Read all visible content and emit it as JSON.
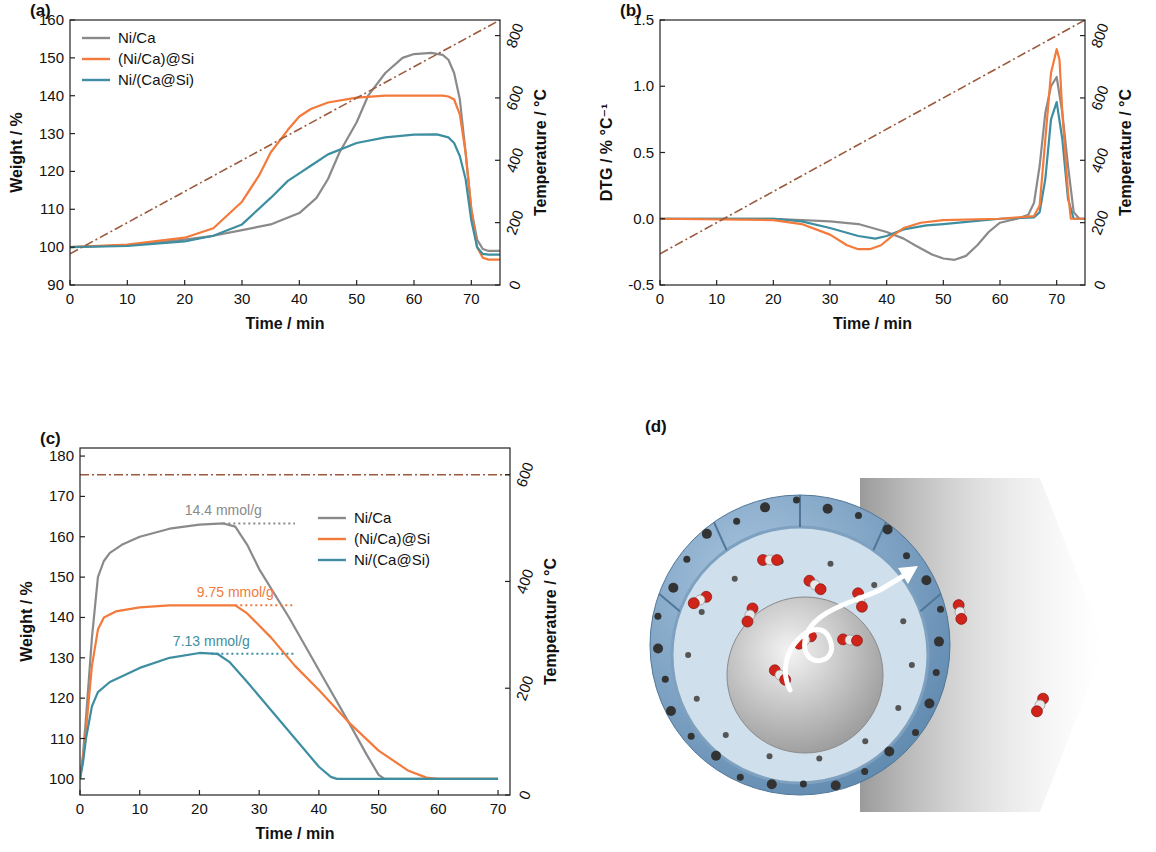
{
  "chart_data": [
    {
      "type": "line",
      "title": "(a)",
      "xlabel": "Time / min",
      "ylabel": "Weight / %",
      "y2label": "Temperature / °C",
      "xlim": [
        0,
        75
      ],
      "xticks": [
        0,
        10,
        20,
        30,
        40,
        50,
        60,
        70
      ],
      "ylim": [
        90,
        160
      ],
      "yticks": [
        90,
        100,
        110,
        120,
        130,
        140,
        150,
        160
      ],
      "y2lim": [
        0,
        850
      ],
      "y2ticks": [
        0,
        200,
        400,
        600,
        800
      ],
      "legend": "upper left",
      "grid": false,
      "series": [
        {
          "name": "Ni/Ca",
          "color": "#8a8a8a",
          "line_style": "solid",
          "x": [
            0,
            10,
            20,
            25,
            30,
            35,
            40,
            43,
            45,
            47,
            50,
            52,
            55,
            58,
            60,
            63,
            65,
            66,
            67,
            68,
            69,
            70,
            71,
            72,
            73,
            75
          ],
          "values": [
            100,
            100.5,
            102,
            103,
            104.5,
            106,
            109,
            113,
            118,
            125,
            133,
            140,
            146,
            150,
            151,
            151.3,
            150.8,
            149.5,
            146,
            139,
            125,
            110,
            102,
            99.5,
            99,
            99
          ]
        },
        {
          "name": "(Ni/Ca)@Si",
          "color": "#f37a3a",
          "line_style": "solid",
          "x": [
            0,
            10,
            20,
            25,
            30,
            33,
            35,
            38,
            40,
            42,
            45,
            50,
            55,
            60,
            65,
            66,
            67,
            68,
            69,
            70,
            71,
            72,
            73,
            75
          ],
          "values": [
            100,
            100.7,
            102.5,
            105,
            112,
            119,
            125,
            131,
            134.5,
            136.5,
            138.2,
            139.5,
            140,
            140,
            140,
            139.8,
            139,
            135,
            125,
            110,
            100,
            97.2,
            96.7,
            96.7
          ]
        },
        {
          "name": "Ni/(Ca@Si)",
          "color": "#3d8ea1",
          "line_style": "solid",
          "x": [
            0,
            10,
            20,
            25,
            30,
            35,
            38,
            40,
            42,
            45,
            50,
            55,
            60,
            64,
            66,
            67,
            68,
            69,
            70,
            71,
            72,
            73,
            75
          ],
          "values": [
            100,
            100.3,
            101.5,
            103,
            106,
            113,
            117.5,
            119.5,
            121.5,
            124.5,
            127.5,
            129,
            129.7,
            129.8,
            129,
            127.5,
            124,
            118,
            107,
            100,
            98.2,
            98,
            98
          ]
        },
        {
          "color": "#9c5a3c",
          "line_style": "dashdot",
          "axis": "y2",
          "x": [
            0,
            75
          ],
          "values": [
            100,
            850
          ]
        }
      ]
    },
    {
      "type": "line",
      "title": "(b)",
      "xlabel": "Time / min",
      "ylabel": "DTG / % °C⁻¹",
      "y2label": "Temperature / °C",
      "xlim": [
        0,
        75
      ],
      "xticks": [
        0,
        10,
        20,
        30,
        40,
        50,
        60,
        70
      ],
      "ylim": [
        -0.5,
        1.5
      ],
      "yticks": [
        -0.5,
        {
          "value": 0,
          "label": "0.0"
        },
        0.5,
        {
          "value": 1,
          "label": "1.0"
        },
        1.5
      ],
      "y2lim": [
        0,
        850
      ],
      "y2ticks": [
        0,
        200,
        400,
        600,
        800
      ],
      "grid": false,
      "series": [
        {
          "color": "#8a8a8a",
          "line_style": "solid",
          "x": [
            0,
            20,
            30,
            35,
            40,
            43,
            45,
            48,
            50,
            52,
            54,
            56,
            58,
            60,
            63,
            65,
            66,
            67,
            68,
            69,
            70,
            71,
            72,
            73,
            74,
            75
          ],
          "values": [
            0,
            0,
            -0.02,
            -0.04,
            -0.1,
            -0.15,
            -0.2,
            -0.27,
            -0.3,
            -0.31,
            -0.28,
            -0.2,
            -0.1,
            -0.03,
            0,
            0.03,
            0.12,
            0.4,
            0.8,
            1.0,
            1.07,
            0.8,
            0.4,
            0.05,
            0,
            0
          ]
        },
        {
          "color": "#3d8ea1",
          "line_style": "solid",
          "x": [
            0,
            20,
            25,
            30,
            35,
            38,
            40,
            43,
            47,
            50,
            55,
            60,
            66,
            67,
            68,
            69,
            70,
            71,
            72,
            73,
            75
          ],
          "values": [
            0,
            0,
            -0.02,
            -0.07,
            -0.13,
            -0.15,
            -0.13,
            -0.08,
            -0.05,
            -0.04,
            -0.02,
            0,
            0.01,
            0.05,
            0.3,
            0.75,
            0.88,
            0.6,
            0.15,
            0,
            0
          ]
        },
        {
          "color": "#f37a3a",
          "line_style": "solid",
          "x": [
            0,
            20,
            25,
            30,
            33,
            35,
            37,
            39,
            41,
            43,
            46,
            50,
            60,
            66,
            67,
            68,
            69,
            70,
            70.5,
            71,
            72,
            72.5,
            75
          ],
          "values": [
            0,
            -0.01,
            -0.04,
            -0.12,
            -0.2,
            -0.23,
            -0.23,
            -0.2,
            -0.13,
            -0.07,
            -0.03,
            -0.01,
            0,
            0.02,
            0.1,
            0.6,
            1.1,
            1.28,
            1.2,
            0.8,
            0.2,
            0,
            0
          ]
        },
        {
          "color": "#9c5a3c",
          "line_style": "dashdot",
          "axis": "y2",
          "x": [
            0,
            75
          ],
          "values": [
            100,
            850
          ]
        }
      ]
    },
    {
      "type": "line",
      "title": "(c)",
      "xlabel": "Time / min",
      "ylabel": "Weight / %",
      "y2label": "Temperature / °C",
      "xlim": [
        0,
        72
      ],
      "xticks": [
        0,
        10,
        20,
        30,
        40,
        50,
        60,
        70
      ],
      "ylim": [
        96,
        182
      ],
      "yticks": [
        100,
        110,
        120,
        130,
        140,
        150,
        160,
        170,
        180
      ],
      "y2lim": [
        0,
        650
      ],
      "y2ticks": [
        0,
        200,
        400,
        600
      ],
      "legend": "upper right",
      "grid": false,
      "series": [
        {
          "name": "Ni/Ca",
          "color": "#8a8a8a",
          "line_style": "solid",
          "x": [
            0,
            0.5,
            1,
            2,
            3,
            4,
            5,
            7,
            10,
            15,
            20,
            24,
            26,
            28,
            30,
            35,
            40,
            45,
            48,
            50,
            51,
            55,
            60,
            65,
            70
          ],
          "values": [
            100,
            106,
            115,
            135,
            150,
            154,
            156,
            158,
            160,
            162,
            163,
            163.3,
            162.5,
            158,
            152,
            140,
            127,
            114,
            106,
            101,
            100,
            100,
            100,
            100,
            100
          ]
        },
        {
          "name": "(Ni/Ca)@Si",
          "color": "#f37a3a",
          "line_style": "solid",
          "x": [
            0,
            0.5,
            1,
            2,
            3,
            4,
            6,
            10,
            15,
            20,
            26,
            28,
            32,
            36,
            40,
            45,
            50,
            55,
            58,
            60,
            65,
            70
          ],
          "values": [
            100,
            105,
            112,
            128,
            137,
            140,
            141.5,
            142.5,
            143,
            143,
            143,
            141,
            135,
            128,
            122,
            114,
            107,
            102,
            100.3,
            100,
            100,
            100
          ]
        },
        {
          "name": "Ni/(Ca@Si)",
          "color": "#3d8ea1",
          "line_style": "solid",
          "x": [
            0,
            0.5,
            1,
            2,
            3,
            5,
            10,
            15,
            20,
            23,
            25,
            28,
            32,
            36,
            40,
            42,
            43,
            50,
            60,
            70
          ],
          "values": [
            100,
            104,
            110,
            118,
            121.5,
            124,
            127.5,
            130,
            131.2,
            131,
            129,
            124,
            117,
            110,
            103,
            100.5,
            100,
            100,
            100,
            100
          ]
        },
        {
          "color": "#9c5a3c",
          "line_style": "dashdot",
          "axis": "y2",
          "x": [
            0,
            72
          ],
          "values": [
            600,
            600
          ]
        }
      ],
      "annotations": [
        {
          "text": "14.4 mmol/g",
          "x": [
            24,
            36
          ],
          "y": 163.3,
          "color": "#8a8a8a"
        },
        {
          "text": "9.75 mmol/g",
          "x": [
            26,
            36
          ],
          "y": 143,
          "color": "#f37a3a"
        },
        {
          "text": "7.13 mmol/g",
          "x": [
            22,
            36
          ],
          "y": 131,
          "color": "#3d8ea1"
        }
      ]
    },
    {
      "type": "illustration",
      "title": "(d)"
    }
  ]
}
